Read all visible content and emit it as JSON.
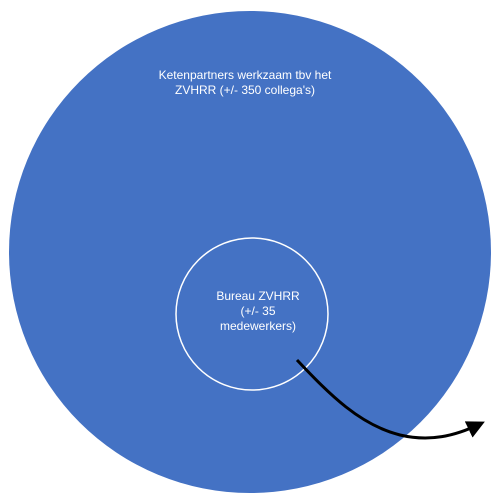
{
  "diagram": {
    "outer_circle": {
      "label_lines": [
        "Ketenpartners werkzaam tbv het",
        "ZVHRR (+/- 350 collega's)"
      ],
      "fill_color": "#4472C4"
    },
    "inner_circle": {
      "label_lines": [
        "Bureau ZVHRR",
        "(+/- 35",
        "medewerkers)"
      ],
      "stroke_color": "#FFFFFF"
    },
    "arrow": {
      "color": "#000000"
    }
  }
}
